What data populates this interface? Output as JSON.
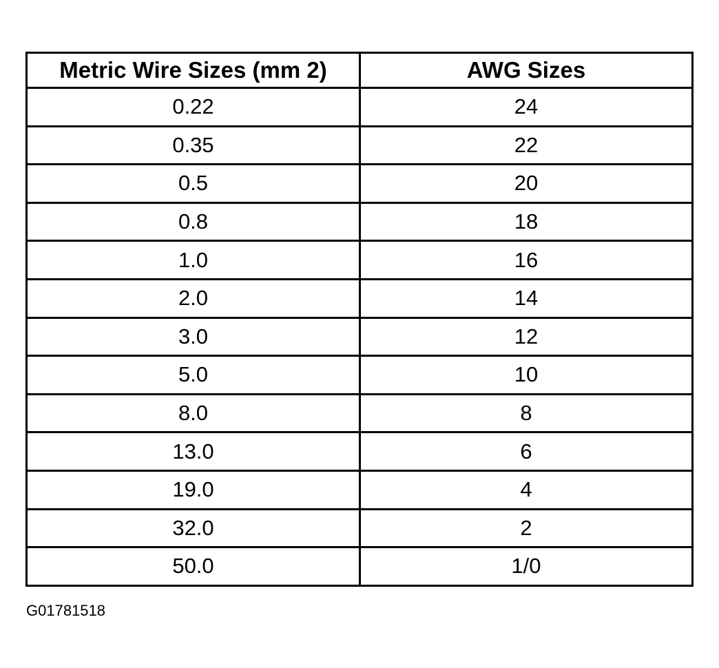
{
  "table": {
    "header": [
      "Metric Wire Sizes (mm 2)",
      "AWG Sizes"
    ],
    "rows": [
      [
        "0.22",
        "24"
      ],
      [
        "0.35",
        "22"
      ],
      [
        "0.5",
        "20"
      ],
      [
        "0.8",
        "18"
      ],
      [
        "1.0",
        "16"
      ],
      [
        "2.0",
        "14"
      ],
      [
        "3.0",
        "12"
      ],
      [
        "5.0",
        "10"
      ],
      [
        "8.0",
        "8"
      ],
      [
        "13.0",
        "6"
      ],
      [
        "19.0",
        "4"
      ],
      [
        "32.0",
        "2"
      ],
      [
        "50.0",
        "1/0"
      ]
    ]
  },
  "caption": "G01781518"
}
